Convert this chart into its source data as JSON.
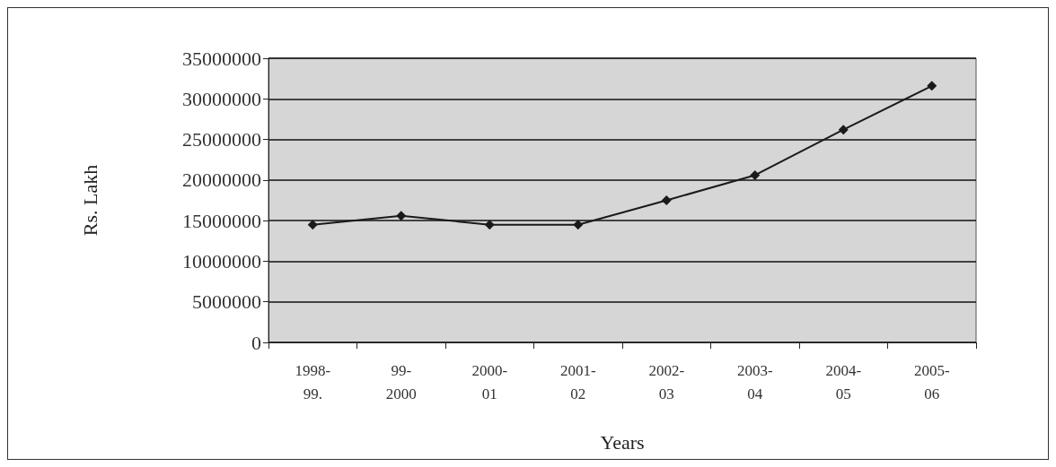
{
  "chart_data": {
    "type": "line",
    "xlabel": "Years",
    "ylabel": "Rs. Lakh",
    "categories": [
      "1998-\n99.",
      "99-\n2000",
      "2000-\n01",
      "2001-\n02",
      "2002-\n03",
      "2003-\n04",
      "2004-\n05",
      "2005-\n06"
    ],
    "series": [
      {
        "color": "#1a1a1a",
        "values": [
          14500000,
          15600000,
          14500000,
          14500000,
          17500000,
          20600000,
          26200000,
          31600000
        ]
      }
    ],
    "ylim": [
      0,
      35000000
    ],
    "yticks": [
      0,
      5000000,
      10000000,
      15000000,
      20000000,
      25000000,
      30000000,
      35000000
    ],
    "grid": "y",
    "marker": "diamond",
    "line_style": "solid"
  }
}
